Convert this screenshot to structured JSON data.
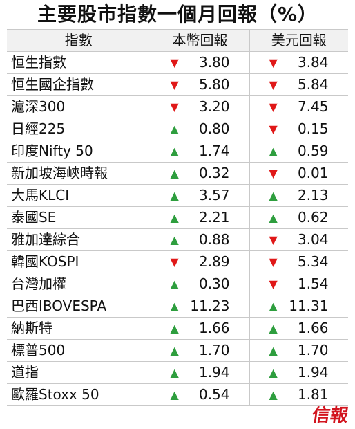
{
  "title": "主要股市指數一個月回報（%）",
  "columns": [
    "指數",
    "本幣回報",
    "美元回報"
  ],
  "rows": [
    {
      "name": "恒生指數",
      "local": {
        "dir": "down",
        "value": "3.80"
      },
      "usd": {
        "dir": "down",
        "value": "3.84"
      }
    },
    {
      "name": "恒生國企指數",
      "local": {
        "dir": "down",
        "value": "5.80"
      },
      "usd": {
        "dir": "down",
        "value": "5.84"
      }
    },
    {
      "name": "滬深300",
      "local": {
        "dir": "down",
        "value": "3.20"
      },
      "usd": {
        "dir": "down",
        "value": "7.45"
      }
    },
    {
      "name": "日經225",
      "local": {
        "dir": "up",
        "value": "0.80"
      },
      "usd": {
        "dir": "down",
        "value": "0.15"
      }
    },
    {
      "name": "印度Nifty 50",
      "local": {
        "dir": "up",
        "value": "1.74"
      },
      "usd": {
        "dir": "up",
        "value": "0.59"
      }
    },
    {
      "name": "新加坡海峽時報",
      "local": {
        "dir": "up",
        "value": "0.32"
      },
      "usd": {
        "dir": "down",
        "value": "0.01"
      }
    },
    {
      "name": "大馬KLCI",
      "local": {
        "dir": "up",
        "value": "3.57"
      },
      "usd": {
        "dir": "up",
        "value": "2.13"
      }
    },
    {
      "name": "泰國SE",
      "local": {
        "dir": "up",
        "value": "2.21"
      },
      "usd": {
        "dir": "up",
        "value": "0.62"
      }
    },
    {
      "name": "雅加達綜合",
      "local": {
        "dir": "up",
        "value": "0.88"
      },
      "usd": {
        "dir": "down",
        "value": "3.04"
      }
    },
    {
      "name": "韓國KOSPI",
      "local": {
        "dir": "down",
        "value": "2.89"
      },
      "usd": {
        "dir": "down",
        "value": "5.34"
      }
    },
    {
      "name": "台灣加權",
      "local": {
        "dir": "up",
        "value": "0.30"
      },
      "usd": {
        "dir": "down",
        "value": "1.54"
      }
    },
    {
      "name": "巴西IBOVESPA",
      "local": {
        "dir": "up",
        "value": "11.23"
      },
      "usd": {
        "dir": "up",
        "value": "11.31"
      }
    },
    {
      "name": "納斯特",
      "local": {
        "dir": "up",
        "value": "1.66"
      },
      "usd": {
        "dir": "up",
        "value": "1.66"
      }
    },
    {
      "name": "標普500",
      "local": {
        "dir": "up",
        "value": "1.70"
      },
      "usd": {
        "dir": "up",
        "value": "1.70"
      }
    },
    {
      "name": "道指",
      "local": {
        "dir": "up",
        "value": "1.94"
      },
      "usd": {
        "dir": "up",
        "value": "1.94"
      }
    },
    {
      "name": "歐羅Stoxx 50",
      "local": {
        "dir": "up",
        "value": "0.54"
      },
      "usd": {
        "dir": "up",
        "value": "1.81"
      }
    }
  ],
  "colors": {
    "up": "#2e9e3e",
    "down": "#e01818",
    "logo": "#d2141e",
    "header_bg": "#f1f1f1"
  },
  "icons": {
    "up": "triangle-up-icon",
    "down": "triangle-down-icon"
  },
  "logo_text": "信報"
}
